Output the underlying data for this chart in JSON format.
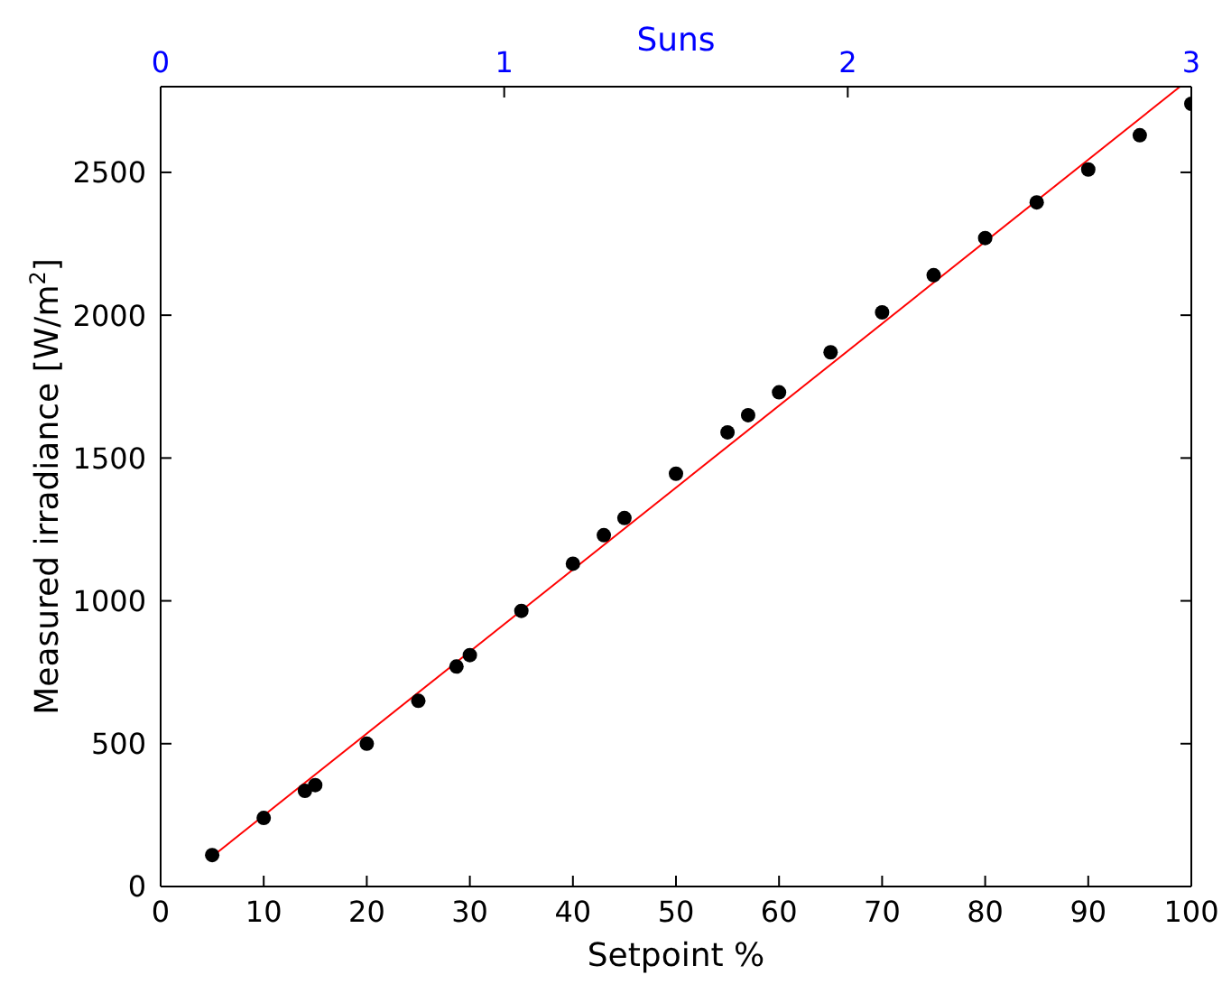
{
  "chart_data": {
    "type": "scatter",
    "xlabel": "Setpoint %",
    "ylabel": "Measured irradiance [W/m$^{2}$]",
    "x2label": "Suns",
    "xlim": [
      0,
      100
    ],
    "xticks": [
      0,
      10,
      20,
      30,
      40,
      50,
      60,
      70,
      80,
      90,
      100
    ],
    "ylim": [
      0,
      2800
    ],
    "yticks": [
      0,
      500,
      1000,
      1500,
      2000,
      2500
    ],
    "x2lim": [
      0,
      3
    ],
    "x2ticks": [
      0,
      1,
      2,
      3
    ],
    "grid": false,
    "series": [
      {
        "marker": "circle",
        "color": "#000000",
        "x": [
          5,
          10,
          14,
          15,
          20,
          25,
          28.7,
          30,
          35,
          40,
          43,
          45,
          50,
          55,
          57,
          60,
          65,
          70,
          75,
          80,
          85,
          90,
          95,
          100
        ],
        "values": [
          110,
          240,
          335,
          355,
          500,
          650,
          770,
          810,
          965,
          1130,
          1230,
          1290,
          1445,
          1590,
          1650,
          1730,
          1870,
          2010,
          2140,
          2270,
          2395,
          2510,
          2630,
          2740
        ]
      },
      {
        "type": "line",
        "marker": "none",
        "color": "#ff0000",
        "x": [
          5,
          98.9
        ],
        "values": [
          105,
          2800
        ]
      }
    ]
  }
}
